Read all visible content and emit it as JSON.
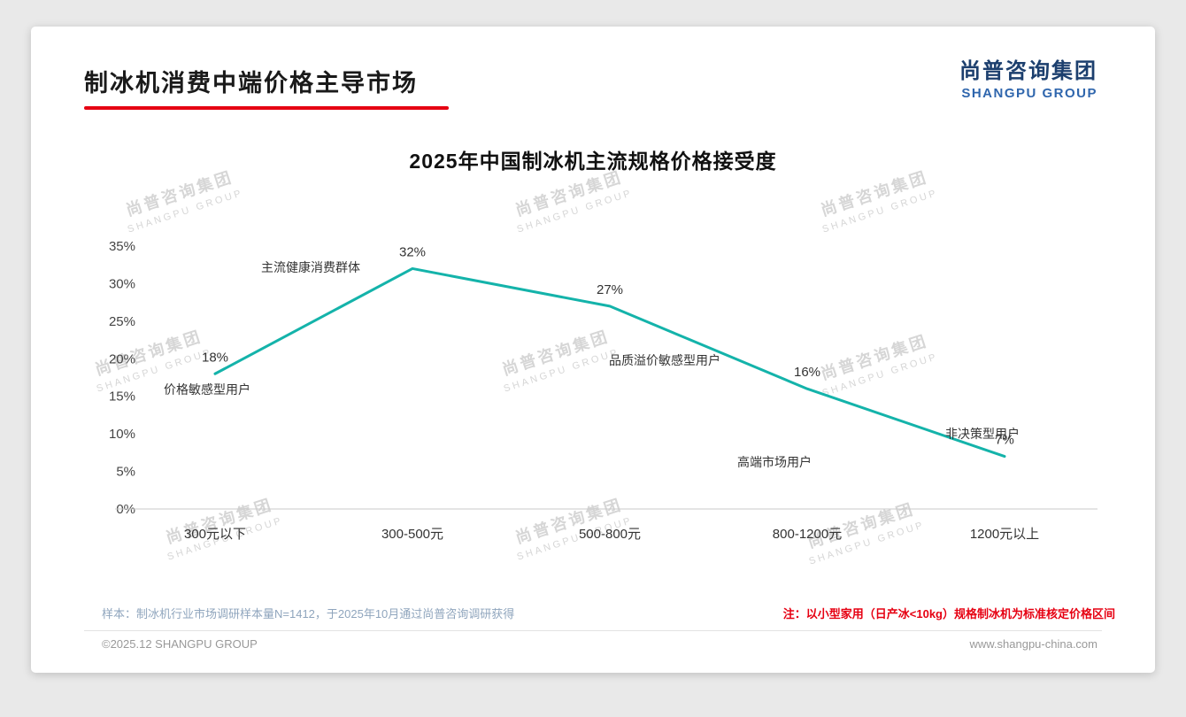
{
  "page": {
    "title": "制冰机消费中端价格主导市场",
    "logo": {
      "cn": "尚普咨询集团",
      "en": "SHANGPU GROUP"
    },
    "watermark": {
      "cn": "尚普咨询集团",
      "en": "SHANGPU GROUP"
    },
    "footer": {
      "sample_note": "样本：制冰机行业市场调研样本量N=1412，于2025年10月通过尚普咨询调研获得",
      "price_note": "注：以小型家用（日产冰<10kg）规格制冰机为标准核定价格区间",
      "copyright": "©2025.12 SHANGPU GROUP",
      "website": "www.shangpu-china.com"
    },
    "colors": {
      "accent_red": "#e60012",
      "logo_navy": "#1c3f6e",
      "logo_blue": "#2f66ad"
    }
  },
  "chart_data": {
    "type": "line",
    "title": "2025年中国制冰机主流规格价格接受度",
    "categories": [
      "300元以下",
      "300-500元",
      "500-800元",
      "800-1200元",
      "1200元以上"
    ],
    "values": [
      18,
      32,
      27,
      16,
      7
    ],
    "value_labels": [
      "18%",
      "32%",
      "27%",
      "16%",
      "7%"
    ],
    "point_annotations": [
      "价格敏感型用户",
      "主流健康消费群体",
      "品质溢价敏感型用户",
      "高端市场用户",
      "非决策型用户"
    ],
    "xlabel": "",
    "ylabel": "",
    "ylim": [
      0,
      35
    ],
    "ytick_step": 5,
    "ytick_labels": [
      "0%",
      "5%",
      "10%",
      "15%",
      "20%",
      "25%",
      "30%",
      "35%"
    ],
    "grid": false,
    "legend": false,
    "line_color": "#14b3aa"
  }
}
